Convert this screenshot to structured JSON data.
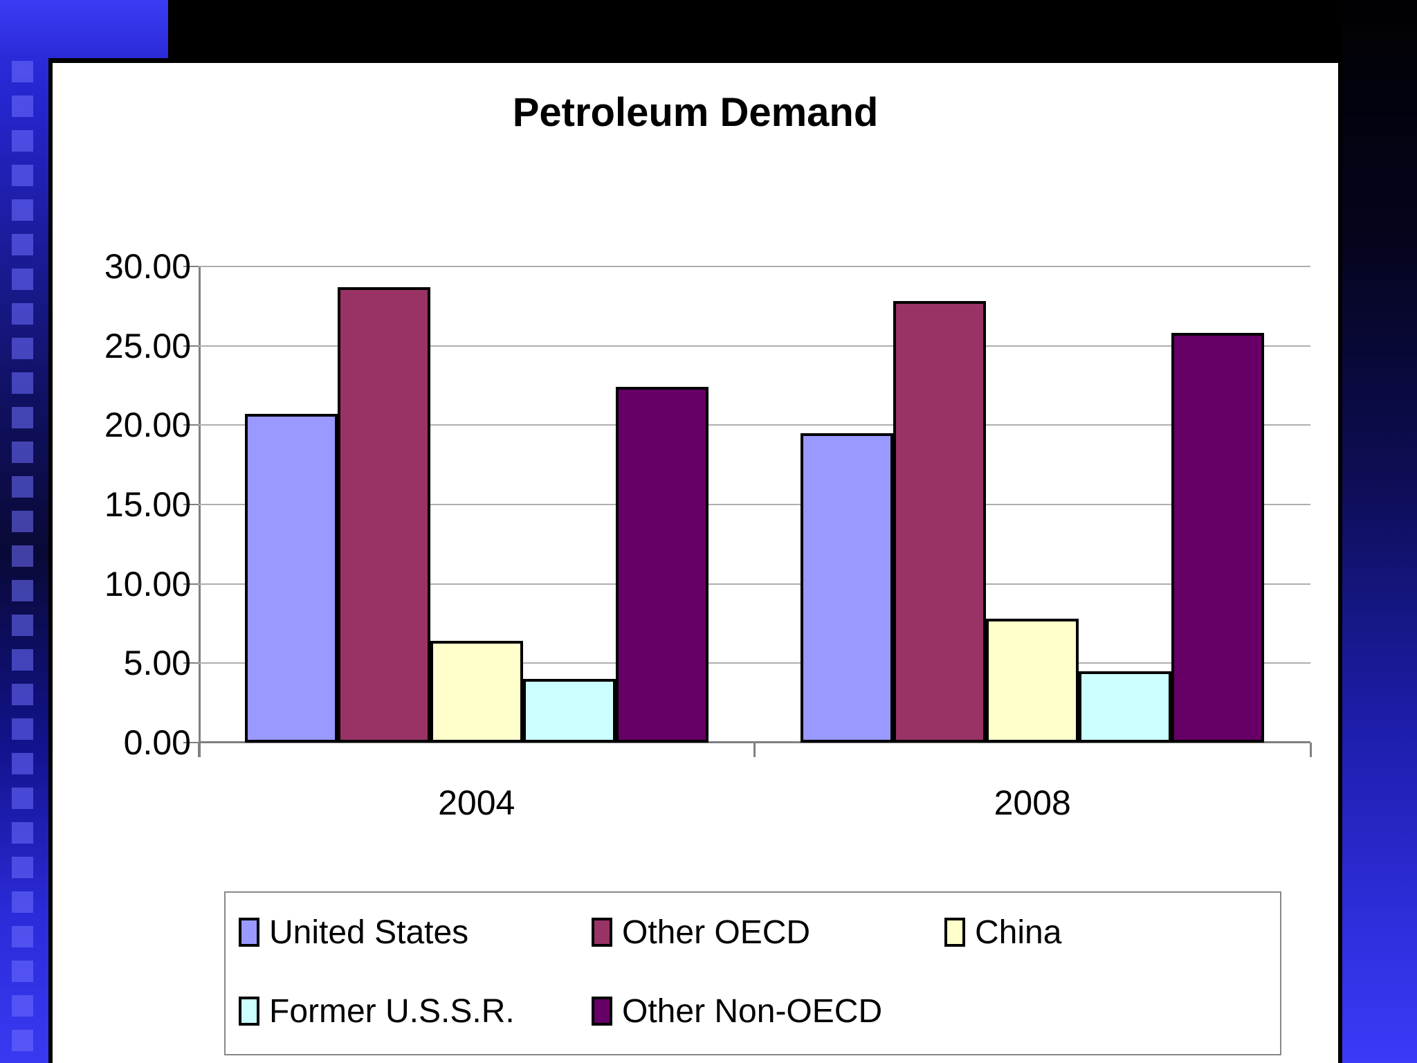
{
  "title": "Petroleum Demand",
  "chart_data": {
    "type": "bar",
    "title": "Petroleum Demand",
    "categories": [
      "2004",
      "2008"
    ],
    "series": [
      {
        "name": "United States",
        "color": "#9999FF",
        "values": [
          20.7,
          19.5
        ]
      },
      {
        "name": "Other OECD",
        "color": "#993366",
        "values": [
          28.7,
          27.8
        ]
      },
      {
        "name": "China",
        "color": "#FFFFCC",
        "values": [
          6.4,
          7.8
        ]
      },
      {
        "name": "Former U.S.S.R.",
        "color": "#CCFFFF",
        "values": [
          4.0,
          4.5
        ]
      },
      {
        "name": "Other Non-OECD",
        "color": "#660066",
        "values": [
          22.4,
          25.8
        ]
      }
    ],
    "ylim": [
      0,
      30
    ],
    "ytick_step": 5,
    "ytick_labels": [
      "0.00",
      "5.00",
      "10.00",
      "15.00",
      "20.00",
      "25.00",
      "30.00"
    ],
    "grid": true,
    "legend_position": "bottom",
    "plot_bg": "#FFFFFF"
  },
  "colors": {
    "bar_border": "#000000",
    "gridline": "#AEAEAE",
    "axis": "#808080",
    "slide_bg": "#FFFFFF",
    "backdrop_blue": "#3333EE"
  }
}
